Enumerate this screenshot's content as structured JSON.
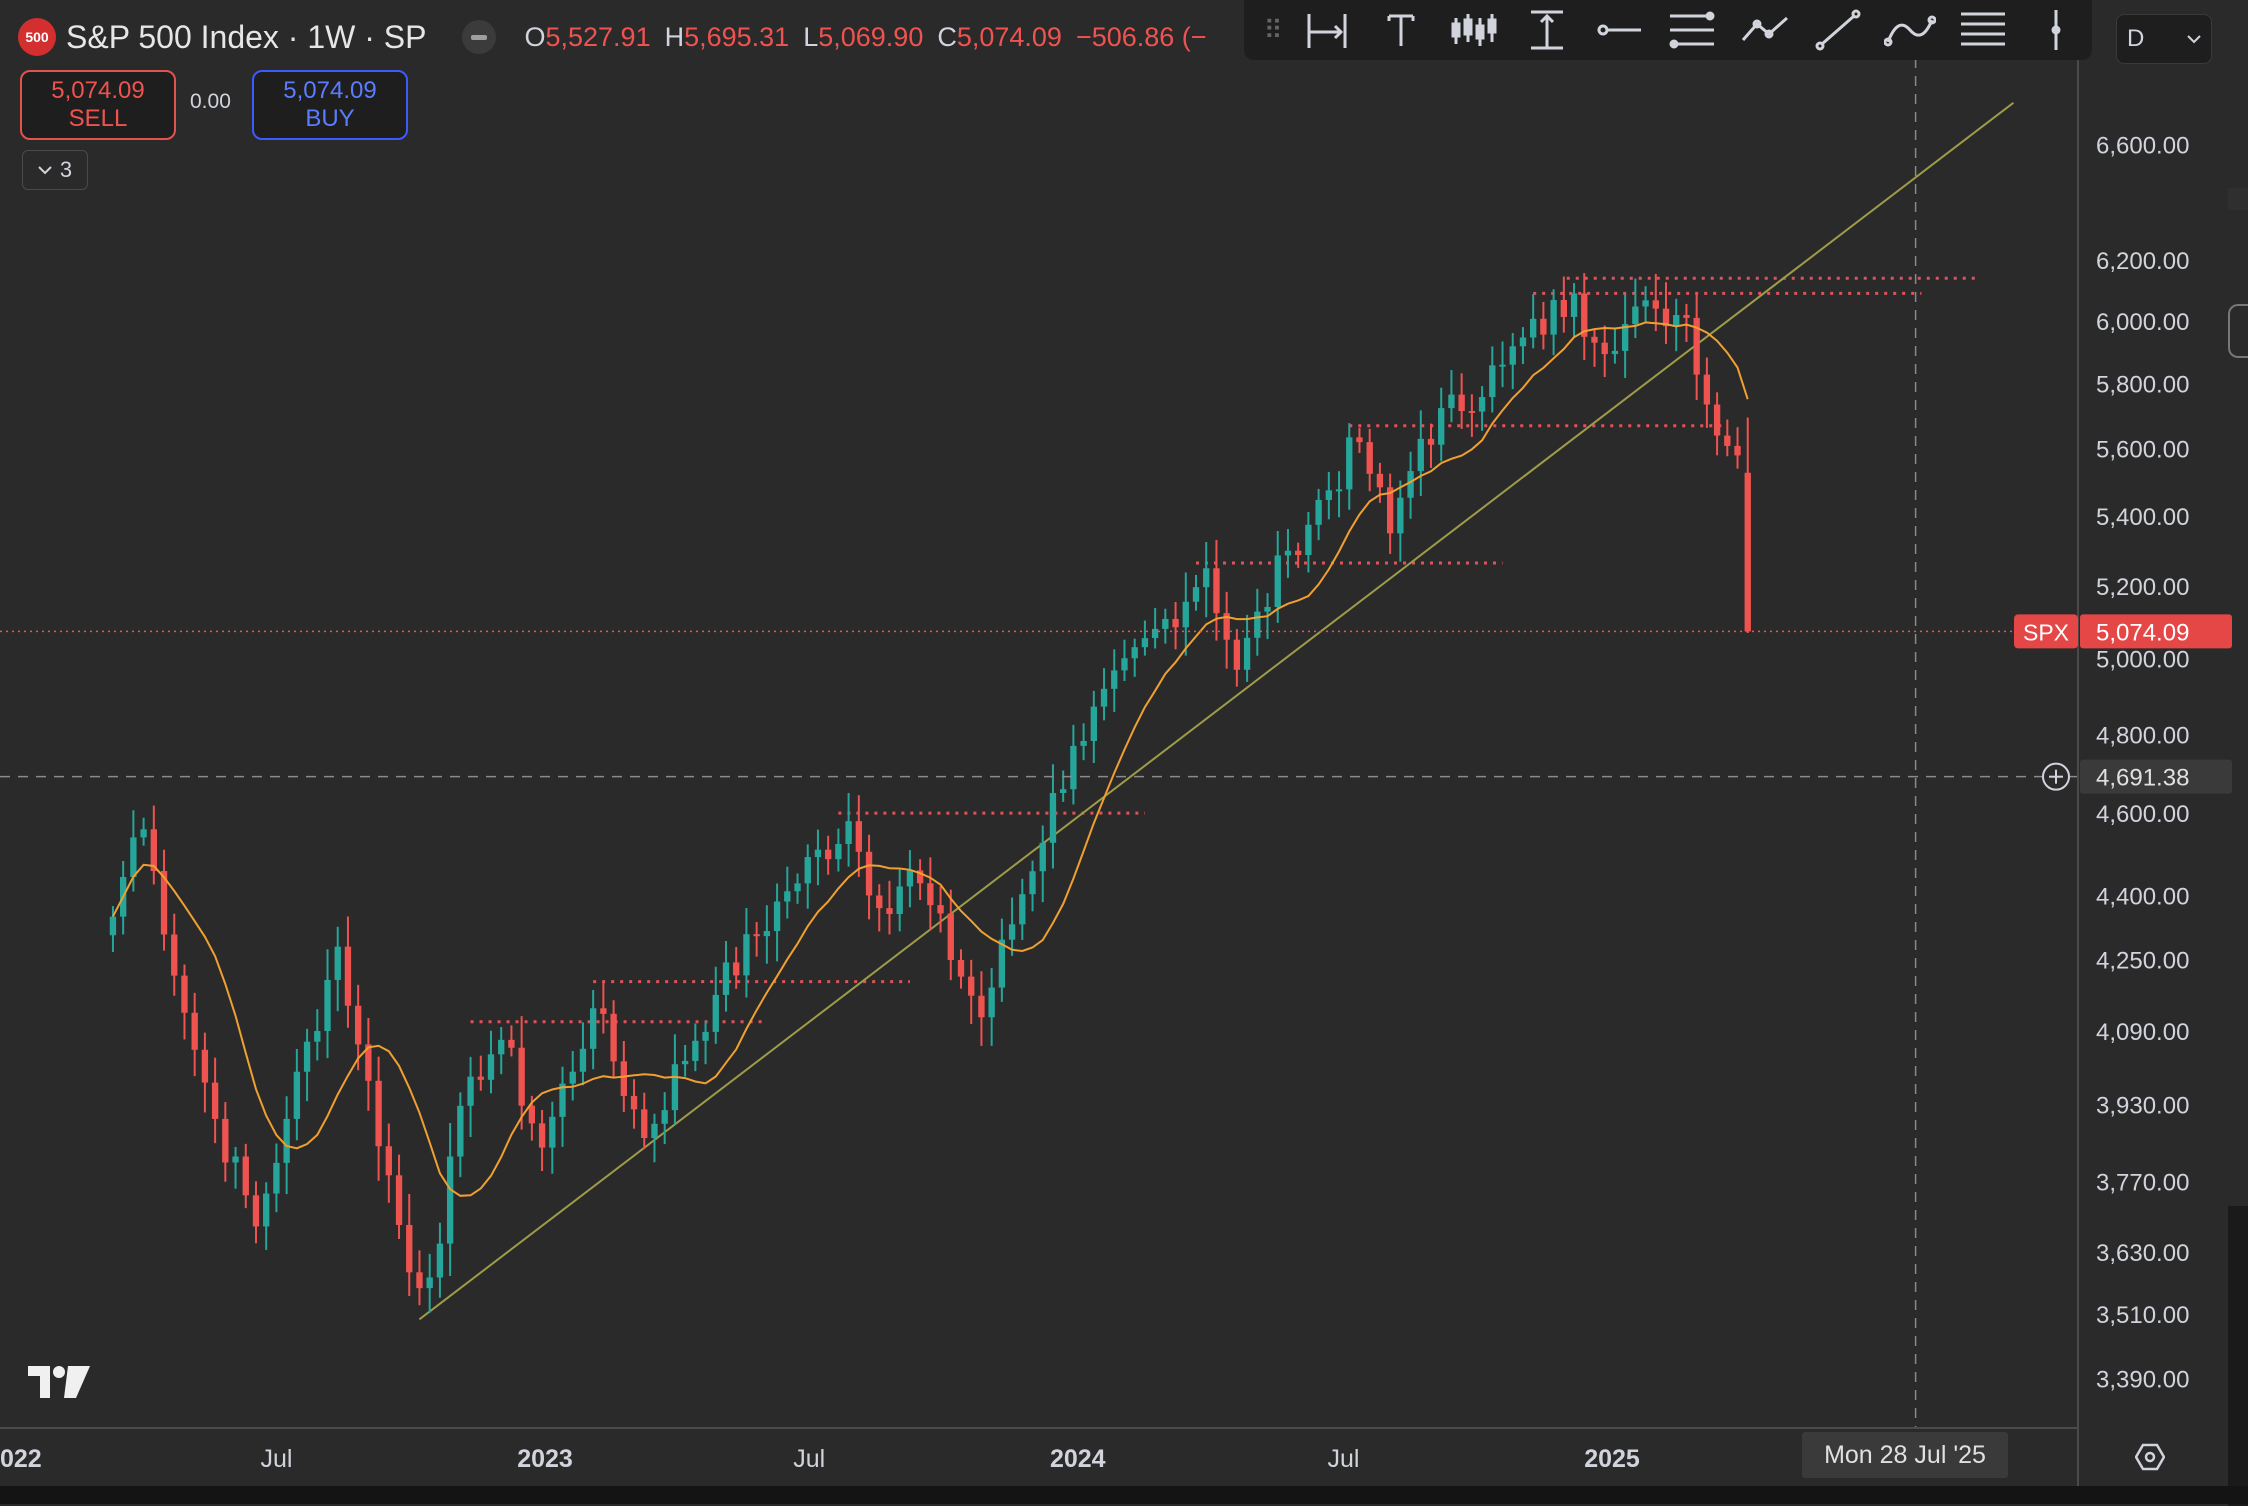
{
  "header": {
    "symbol_badge": "500",
    "title": "S&P 500 Index · 1W · SP",
    "ohlc": [
      {
        "key": "O",
        "value": "5,527.91"
      },
      {
        "key": "H",
        "value": "5,695.31"
      },
      {
        "key": "L",
        "value": "5,069.90"
      },
      {
        "key": "C",
        "value": "5,074.09"
      }
    ],
    "change": "−506.86 (−"
  },
  "trade": {
    "sell_price": "5,074.09",
    "sell_label": "SELL",
    "spread": "0.00",
    "buy_price": "5,074.09",
    "buy_label": "BUY"
  },
  "indicators": {
    "count": "3"
  },
  "toolbar": {
    "tools": [
      "date-price-range-icon",
      "text-icon",
      "bar-pattern-icon",
      "price-range-icon",
      "horizontal-ray-icon",
      "fib-retracement-icon",
      "path-icon",
      "trend-line-icon",
      "curve-icon",
      "multi-line-icon",
      "vertical-line-icon"
    ]
  },
  "timeframe_select": {
    "value": "D"
  },
  "crosshair": {
    "price_label": "4,691.38",
    "date_label": "Mon 28 Jul '25"
  },
  "colors": {
    "up": "#26a69a",
    "down": "#ef5350",
    "ma": "#f0a030",
    "trendline": "#9e9c4a",
    "level": "#e0525a",
    "accent_red": "#e54646"
  },
  "chart_data": {
    "type": "candlestick",
    "interval": "1W",
    "x_range": [
      "2022-03",
      "2025-10"
    ],
    "x_ticks": [
      {
        "label": "022",
        "date": "2022-01"
      },
      {
        "label": "Jul",
        "date": "2022-07"
      },
      {
        "label": "2023",
        "date": "2023-01"
      },
      {
        "label": "Jul",
        "date": "2023-07"
      },
      {
        "label": "2024",
        "date": "2024-01"
      },
      {
        "label": "Jul",
        "date": "2024-07"
      },
      {
        "label": "2025",
        "date": "2025-01"
      }
    ],
    "y_scale": "log",
    "y_range": [
      3290,
      6900
    ],
    "y_ticks": [
      "6,600.00",
      "6,200.00",
      "6,000.00",
      "5,800.00",
      "5,600.00",
      "5,400.00",
      "5,200.00",
      "5,000.00",
      "4,800.00",
      "4,600.00",
      "4,400.00",
      "4,250.00",
      "4,090.00",
      "3,930.00",
      "3,770.00",
      "3,630.00",
      "3,510.00",
      "3,390.00"
    ],
    "last_price": {
      "label": "SPX",
      "value": "5,074.09"
    },
    "ma_length_weeks": 10,
    "key_closes": [
      [
        "2022-03-11",
        4350
      ],
      [
        "2022-03-25",
        4540
      ],
      [
        "2022-04-01",
        4560
      ],
      [
        "2022-04-29",
        4130
      ],
      [
        "2022-05-20",
        3900
      ],
      [
        "2022-06-17",
        3680
      ],
      [
        "2022-07-08",
        3900
      ],
      [
        "2022-08-12",
        4280
      ],
      [
        "2022-08-26",
        4060
      ],
      [
        "2022-09-30",
        3590
      ],
      [
        "2022-10-14",
        3580
      ],
      [
        "2022-11-11",
        3990
      ],
      [
        "2022-12-02",
        4070
      ],
      [
        "2022-12-30",
        3840
      ],
      [
        "2023-02-03",
        4140
      ],
      [
        "2023-03-10",
        3860
      ],
      [
        "2023-04-28",
        4170
      ],
      [
        "2023-06-16",
        4410
      ],
      [
        "2023-07-28",
        4580
      ],
      [
        "2023-08-18",
        4370
      ],
      [
        "2023-09-08",
        4460
      ],
      [
        "2023-10-27",
        4120
      ],
      [
        "2023-12-29",
        4770
      ],
      [
        "2024-03-29",
        5250
      ],
      [
        "2024-04-19",
        4970
      ],
      [
        "2024-05-24",
        5300
      ],
      [
        "2024-07-12",
        5620
      ],
      [
        "2024-08-02",
        5350
      ],
      [
        "2024-08-23",
        5630
      ],
      [
        "2024-10-18",
        5860
      ],
      [
        "2024-12-06",
        6090
      ],
      [
        "2024-12-20",
        5930
      ],
      [
        "2025-01-31",
        6040
      ],
      [
        "2025-02-21",
        6010
      ],
      [
        "2025-03-14",
        5640
      ],
      [
        "2025-03-28",
        5580
      ],
      [
        "2025-04-04",
        5074.09
      ]
    ],
    "last_candle": {
      "date": "2025-04-04",
      "open": 5527.91,
      "high": 5695.31,
      "low": 5069.9,
      "close": 5074.09
    },
    "horizontal_levels": [
      {
        "price": 6140,
        "from": "2024-12-01",
        "to": "2025-09-10"
      },
      {
        "price": 6090,
        "from": "2024-11-08",
        "to": "2025-08-01"
      },
      {
        "price": 5670,
        "from": "2024-07-05",
        "to": "2025-03-20"
      },
      {
        "price": 5265,
        "from": "2024-03-22",
        "to": "2024-10-18"
      },
      {
        "price": 4600,
        "from": "2023-07-21",
        "to": "2024-02-16"
      },
      {
        "price": 4200,
        "from": "2023-02-03",
        "to": "2023-09-08"
      },
      {
        "price": 4110,
        "from": "2022-11-11",
        "to": "2023-06-02"
      }
    ],
    "trendline": {
      "from": [
        "2022-10-07",
        3500
      ],
      "to": [
        "2025-10-03",
        6750
      ]
    }
  }
}
